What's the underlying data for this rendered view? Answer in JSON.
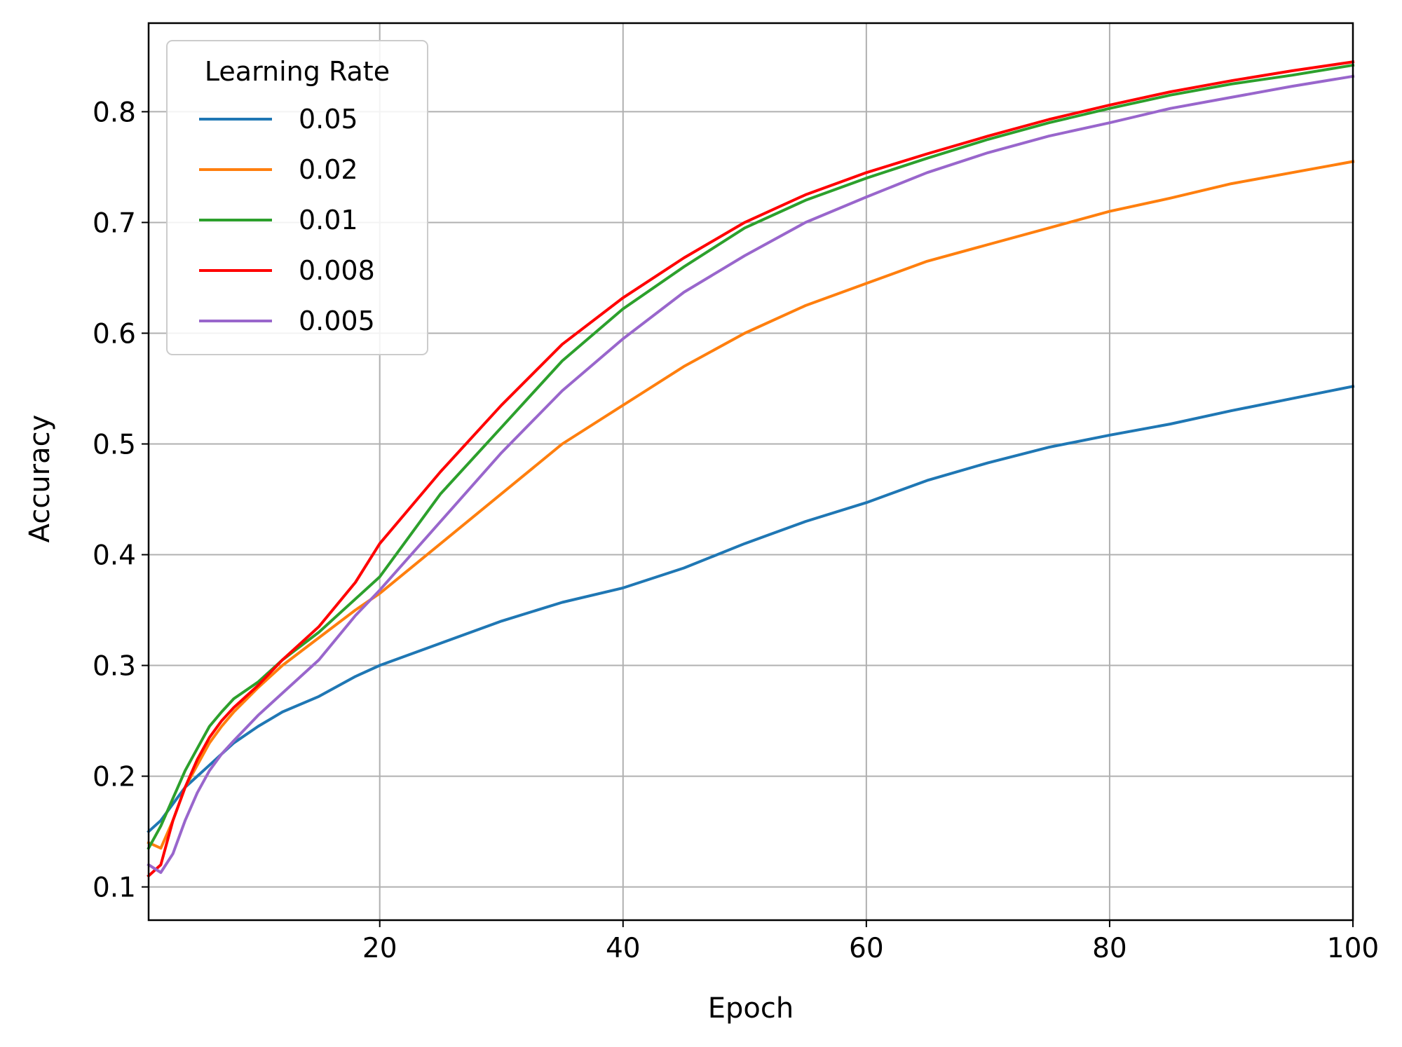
{
  "chart_data": {
    "type": "line",
    "title": "",
    "xlabel": "Epoch",
    "ylabel": "Accuracy",
    "xlim": [
      1,
      100
    ],
    "ylim": [
      0.07,
      0.88
    ],
    "xticks": [
      20,
      40,
      60,
      80,
      100
    ],
    "yticks": [
      0.1,
      0.2,
      0.3,
      0.4,
      0.5,
      0.6,
      0.7,
      0.8
    ],
    "grid": true,
    "legend": {
      "title": "Learning Rate",
      "position": "upper-left"
    },
    "x": [
      1,
      2,
      3,
      4,
      5,
      6,
      7,
      8,
      10,
      12,
      15,
      18,
      20,
      25,
      30,
      35,
      40,
      45,
      50,
      55,
      60,
      65,
      70,
      75,
      80,
      85,
      90,
      95,
      100
    ],
    "series": [
      {
        "name": "0.05",
        "color": "#1f77b4",
        "values": [
          0.15,
          0.16,
          0.175,
          0.19,
          0.2,
          0.21,
          0.22,
          0.23,
          0.245,
          0.258,
          0.272,
          0.29,
          0.3,
          0.32,
          0.34,
          0.357,
          0.37,
          0.388,
          0.41,
          0.43,
          0.447,
          0.467,
          0.483,
          0.497,
          0.508,
          0.518,
          0.53,
          0.541,
          0.552
        ]
      },
      {
        "name": "0.02",
        "color": "#ff7f0e",
        "values": [
          0.14,
          0.135,
          0.16,
          0.19,
          0.21,
          0.23,
          0.245,
          0.258,
          0.28,
          0.3,
          0.325,
          0.35,
          0.365,
          0.41,
          0.455,
          0.5,
          0.535,
          0.57,
          0.6,
          0.625,
          0.645,
          0.665,
          0.68,
          0.695,
          0.71,
          0.722,
          0.735,
          0.745,
          0.755
        ]
      },
      {
        "name": "0.01",
        "color": "#2ca02c",
        "values": [
          0.135,
          0.155,
          0.18,
          0.205,
          0.225,
          0.245,
          0.258,
          0.27,
          0.285,
          0.305,
          0.33,
          0.36,
          0.38,
          0.455,
          0.515,
          0.575,
          0.622,
          0.66,
          0.695,
          0.72,
          0.74,
          0.758,
          0.775,
          0.79,
          0.803,
          0.815,
          0.825,
          0.833,
          0.842
        ]
      },
      {
        "name": "0.008",
        "color": "#ff0000",
        "values": [
          0.11,
          0.12,
          0.16,
          0.19,
          0.215,
          0.235,
          0.25,
          0.262,
          0.282,
          0.305,
          0.335,
          0.375,
          0.41,
          0.475,
          0.535,
          0.59,
          0.632,
          0.668,
          0.7,
          0.725,
          0.745,
          0.762,
          0.778,
          0.793,
          0.806,
          0.818,
          0.828,
          0.837,
          0.845
        ]
      },
      {
        "name": "0.005",
        "color": "#9966cc",
        "values": [
          0.12,
          0.113,
          0.13,
          0.16,
          0.185,
          0.205,
          0.22,
          0.232,
          0.255,
          0.275,
          0.305,
          0.345,
          0.368,
          0.43,
          0.492,
          0.548,
          0.595,
          0.637,
          0.67,
          0.7,
          0.723,
          0.745,
          0.763,
          0.778,
          0.79,
          0.803,
          0.813,
          0.823,
          0.832
        ]
      }
    ]
  }
}
